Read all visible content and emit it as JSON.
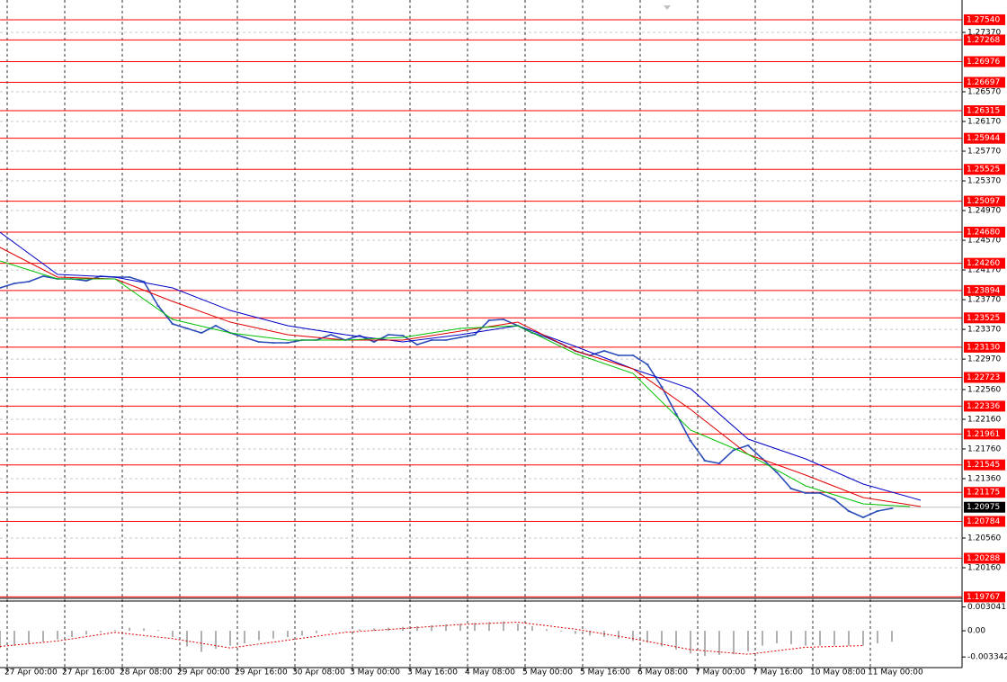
{
  "chart_data": [
    {
      "type": "line",
      "xlim": [
        0,
        267.5
      ],
      "xticks": [
        {
          "value": 2,
          "label": "27 Apr 00:00"
        },
        {
          "value": 18,
          "label": "27 Apr 16:00"
        },
        {
          "value": 34,
          "label": "28 Apr 08:00"
        },
        {
          "value": 50,
          "label": "29 Apr 00:00"
        },
        {
          "value": 66,
          "label": "29 Apr 16:00"
        },
        {
          "value": 82,
          "label": "30 Apr 08:00"
        },
        {
          "value": 98,
          "label": "3 May 00:00"
        },
        {
          "value": 114,
          "label": "3 May 16:00"
        },
        {
          "value": 130,
          "label": "4 May 08:00"
        },
        {
          "value": 146,
          "label": "5 May 00:00"
        },
        {
          "value": 162,
          "label": "5 May 16:00"
        },
        {
          "value": 178,
          "label": "6 May 08:00"
        },
        {
          "value": 194,
          "label": "7 May 00:00"
        },
        {
          "value": 210,
          "label": "7 May 16:00"
        },
        {
          "value": 226,
          "label": "10 May 08:00"
        },
        {
          "value": 242,
          "label": "11 May 00:00"
        }
      ],
      "ylim": [
        1.19748,
        1.27806
      ],
      "yticks": [
        {
          "value": 1.2737,
          "label": "1.27370"
        },
        {
          "value": 1.2657,
          "label": "1.26570"
        },
        {
          "value": 1.2617,
          "label": "1.26170"
        },
        {
          "value": 1.2577,
          "label": "1.25770"
        },
        {
          "value": 1.2537,
          "label": "1.25370"
        },
        {
          "value": 1.2497,
          "label": "1.24970"
        },
        {
          "value": 1.2457,
          "label": "1.24570"
        },
        {
          "value": 1.2417,
          "label": "1.24170"
        },
        {
          "value": 1.2377,
          "label": "1.23770"
        },
        {
          "value": 1.2337,
          "label": "1.23370"
        },
        {
          "value": 1.2297,
          "label": "1.22970"
        },
        {
          "value": 1.2256,
          "label": "1.22560"
        },
        {
          "value": 1.2216,
          "label": "1.22160"
        },
        {
          "value": 1.2176,
          "label": "1.21760"
        },
        {
          "value": 1.2136,
          "label": "1.21360"
        },
        {
          "value": 1.2056,
          "label": "1.20560"
        },
        {
          "value": 1.2016,
          "label": "1.20160"
        }
      ],
      "grid": true,
      "levels": [
        {
          "value": 1.2754,
          "label": "1.27540"
        },
        1.27268,
        1.26976,
        1.26697,
        1.26315,
        1.25944,
        1.25525,
        1.25097,
        {
          "value": 1.2468,
          "label": "1.24680"
        },
        {
          "value": 1.2426,
          "label": "1.24260"
        },
        1.23894,
        1.23525,
        {
          "value": 1.2313,
          "label": "1.23130"
        },
        1.22723,
        1.22336,
        1.21961,
        1.21545,
        1.21175,
        1.20784,
        1.20288,
        1.19767
      ],
      "level_color": "#ff0000",
      "last_price": 1.20975,
      "series": [
        {
          "color": "#2b4cb8",
          "x": [
            0,
            4,
            8,
            12,
            16,
            20,
            24,
            28,
            32,
            36,
            40,
            44,
            48,
            52,
            56,
            60,
            64,
            68,
            72,
            76,
            80,
            84,
            88,
            92,
            96,
            100,
            104,
            108,
            112,
            116,
            120,
            124,
            128,
            132,
            136,
            140,
            144,
            148,
            152,
            156,
            160,
            164,
            168,
            172,
            176,
            180,
            184,
            188,
            192,
            196,
            200,
            204,
            208,
            212,
            216,
            220,
            224,
            228,
            232,
            236,
            240,
            244,
            248
          ],
          "values": [
            1.23929,
            1.23989,
            1.24013,
            1.24086,
            1.2405,
            1.2405,
            1.24025,
            1.24086,
            1.24074,
            1.24074,
            1.24013,
            1.23686,
            1.23444,
            1.23383,
            1.23323,
            1.2342,
            1.23323,
            1.23262,
            1.23201,
            1.23189,
            1.23189,
            1.23226,
            1.23226,
            1.23298,
            1.23226,
            1.23286,
            1.23201,
            1.23298,
            1.23286,
            1.23165,
            1.23226,
            1.23226,
            1.23262,
            1.23298,
            1.23492,
            1.23504,
            1.2342,
            1.23323,
            1.23262,
            1.23177,
            1.2308,
            1.2302,
            1.2308,
            1.2302,
            1.2302,
            1.22898,
            1.22596,
            1.22232,
            1.21869,
            1.21602,
            1.21565,
            1.21745,
            1.21808,
            1.21626,
            1.21444,
            1.21226,
            1.21166,
            1.21166,
            1.21081,
            1.20923,
            1.20838,
            1.20923,
            1.2096
          ]
        },
        {
          "color": "#0000c8",
          "x": [
            0,
            16,
            32,
            48,
            64,
            80,
            96,
            112,
            128,
            144,
            160,
            176,
            192,
            208,
            224,
            240,
            256
          ],
          "values": [
            1.24679,
            1.2411,
            1.24074,
            1.23929,
            1.23626,
            1.2342,
            1.23298,
            1.23201,
            1.23298,
            1.2342,
            1.23141,
            1.22838,
            1.22571,
            1.21893,
            1.21626,
            1.21287,
            1.21069
          ]
        },
        {
          "color": "#e00000",
          "x": [
            0,
            16,
            32,
            48,
            64,
            80,
            96,
            112,
            128,
            144,
            160,
            176,
            192,
            208,
            224,
            240,
            256
          ],
          "values": [
            1.24474,
            1.24074,
            1.2405,
            1.23747,
            1.23468,
            1.23298,
            1.23226,
            1.23226,
            1.23347,
            1.23468,
            1.2308,
            1.22838,
            1.22293,
            1.21687,
            1.21408,
            1.21105,
            1.20984
          ]
        },
        {
          "color": "#00c000",
          "x": [
            0,
            16,
            32,
            48,
            64,
            80,
            96,
            112,
            128,
            144,
            160,
            176,
            192,
            208,
            224,
            240,
            253
          ],
          "values": [
            1.24292,
            1.2405,
            1.2405,
            1.23504,
            1.23323,
            1.23226,
            1.23226,
            1.23262,
            1.23383,
            1.2342,
            1.23044,
            1.22777,
            1.22014,
            1.21687,
            1.21263,
            1.2102,
            1.20984
          ]
        }
      ]
    },
    {
      "type": "bar",
      "xlim": [
        0,
        267.5
      ],
      "ylim": [
        -0.0047,
        0.0038
      ],
      "yticks": [
        0.003041,
        {
          "value": 0,
          "label": "0.00"
        },
        -0.003342
      ],
      "series": [
        {
          "color": "#b0b0b0",
          "kind": "bar",
          "x": [
            0,
            4,
            8,
            12,
            16,
            20,
            24,
            28,
            32,
            36,
            40,
            44,
            48,
            52,
            56,
            60,
            64,
            68,
            72,
            76,
            80,
            84,
            88,
            92,
            96,
            100,
            104,
            108,
            112,
            116,
            120,
            124,
            128,
            132,
            136,
            140,
            144,
            148,
            152,
            156,
            160,
            164,
            168,
            172,
            176,
            180,
            184,
            188,
            192,
            196,
            200,
            204,
            208,
            212,
            216,
            220,
            224,
            228,
            232,
            236,
            240,
            244,
            248
          ],
          "values": [
            -0.0022,
            -0.0019,
            -0.0016,
            -0.0014,
            -0.0011,
            -0.0008,
            -0.0005,
            -0.0002,
            0.0001,
            0.0004,
            0.0003,
            0.0001,
            -0.0008,
            -0.002,
            -0.0027,
            -0.0023,
            -0.0019,
            -0.0016,
            -0.0012,
            -0.001,
            -0.0008,
            -0.0006,
            -0.0003,
            -0.0001,
            0,
            0.0002,
            0.0003,
            0.0004,
            0.0005,
            0.0006,
            0.0007,
            0.0008,
            0.0009,
            0.001,
            0.0011,
            0.0012,
            0.0009,
            0.0006,
            0.0002,
            -0.0001,
            -0.0004,
            -0.0006,
            -0.0008,
            -0.001,
            -0.0013,
            -0.0015,
            -0.002,
            -0.0024,
            -0.0029,
            -0.0032,
            -0.0031,
            -0.003,
            -0.0026,
            -0.0019,
            -0.0016,
            -0.0017,
            -0.0019,
            -0.0019,
            -0.0019,
            -0.0019,
            -0.0019,
            -0.0016,
            -0.0014
          ]
        },
        {
          "color": "#e00000",
          "kind": "dotted",
          "x": [
            0,
            16,
            32,
            48,
            64,
            80,
            96,
            112,
            128,
            144,
            160,
            176,
            192,
            208,
            224,
            240
          ],
          "values": [
            -0.002,
            -0.0013,
            -0.0002,
            -0.001,
            -0.0022,
            -0.0012,
            -0.0002,
            0.0003,
            0.0008,
            0.0011,
            0.0002,
            -0.001,
            -0.0024,
            -0.003,
            -0.0021,
            -0.0019
          ]
        }
      ]
    }
  ]
}
